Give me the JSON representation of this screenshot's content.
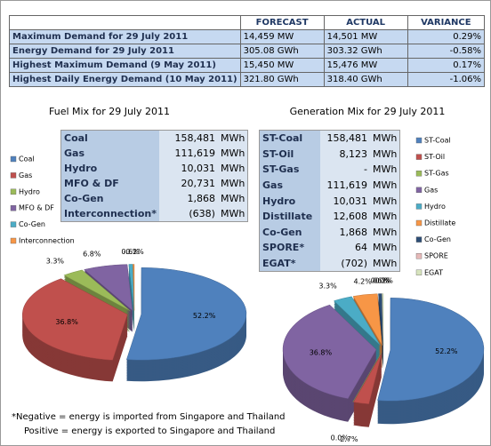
{
  "summary_table": {
    "header": [
      "FORECAST",
      "ACTUAL",
      "VARIANCE"
    ],
    "rows": [
      [
        "Maximum Demand for 29 July 2011",
        "14,459  MW",
        "14,501  MW",
        "0.29%"
      ],
      [
        "Energy Demand for 29 July 2011",
        "305.08  GWh",
        "303.32  GWh",
        "-0.58%"
      ],
      [
        "Highest Maximum Demand (9 May 2011)",
        "15,450  MW",
        "15,476  MW",
        "0.17%"
      ],
      [
        "Highest Daily Energy Demand (10 May 2011)",
        "321.80  GWh",
        "318.40  GWh",
        "-1.06%"
      ]
    ]
  },
  "fuel_table": {
    "rows": [
      [
        "Coal",
        "158,481",
        "MWh"
      ],
      [
        "Gas",
        "111,619",
        "MWh"
      ],
      [
        "Hydro",
        "10,031",
        "MWh"
      ],
      [
        "MFO & DF",
        "20,731",
        "MWh"
      ],
      [
        "Co-Gen",
        "1,868",
        "MWh"
      ],
      [
        "Interconnection*",
        "(638)",
        "MWh"
      ]
    ]
  },
  "generation_table": {
    "rows": [
      [
        "ST-Coal",
        "158,481",
        "MWh"
      ],
      [
        "ST-Oil",
        "8,123",
        "MWh"
      ],
      [
        "ST-Gas",
        "-",
        "MWh"
      ],
      [
        "Gas",
        "111,619",
        "MWh"
      ],
      [
        "Hydro",
        "10,031",
        "MWh"
      ],
      [
        "Distillate",
        "12,608",
        "MWh"
      ],
      [
        "Co-Gen",
        "1,868",
        "MWh"
      ],
      [
        "SPORE*",
        "64",
        "MWh"
      ],
      [
        "EGAT*",
        "(702)",
        "MWh"
      ]
    ]
  },
  "chart_data": [
    {
      "type": "pie",
      "title": "Fuel Mix for 29 July 2011",
      "categories": [
        "Coal",
        "Gas",
        "Hydro",
        "MFO & DF",
        "Co-Gen",
        "Interconnection"
      ],
      "values": [
        52.2,
        36.8,
        3.3,
        6.8,
        0.6,
        -0.2
      ],
      "value_labels": [
        "52.2%",
        "36.8%",
        "3.3%",
        "6.8%",
        "0.6%",
        "-0.2%"
      ],
      "colors": [
        "#4f81bd",
        "#c0504d",
        "#9bbb59",
        "#8064a2",
        "#4bacc6",
        "#f79646"
      ]
    },
    {
      "type": "pie",
      "title": "Generation Mix for 29 July 2011",
      "categories": [
        "ST-Coal",
        "ST-Oil",
        "ST-Gas",
        "Gas",
        "Hydro",
        "Distillate",
        "Co-Gen",
        "SPORE",
        "EGAT"
      ],
      "values": [
        52.2,
        2.7,
        0.0,
        36.8,
        3.3,
        4.2,
        0.6,
        0.0,
        -0.2
      ],
      "value_labels": [
        "52.2%",
        "2.7%",
        "0.0%",
        "36.8%",
        "3.3%",
        "4.2%",
        "0.6%",
        "0.0%",
        "-0.2%"
      ],
      "colors": [
        "#4f81bd",
        "#c0504d",
        "#9bbb59",
        "#8064a2",
        "#4bacc6",
        "#f79646",
        "#2c4d75",
        "#e6b9b8",
        "#d7e4bd"
      ]
    }
  ],
  "footnote": [
    "*Negative = energy is imported from Singapore and Thailand",
    "Positive = energy is exported to Singapore and Thailand"
  ]
}
